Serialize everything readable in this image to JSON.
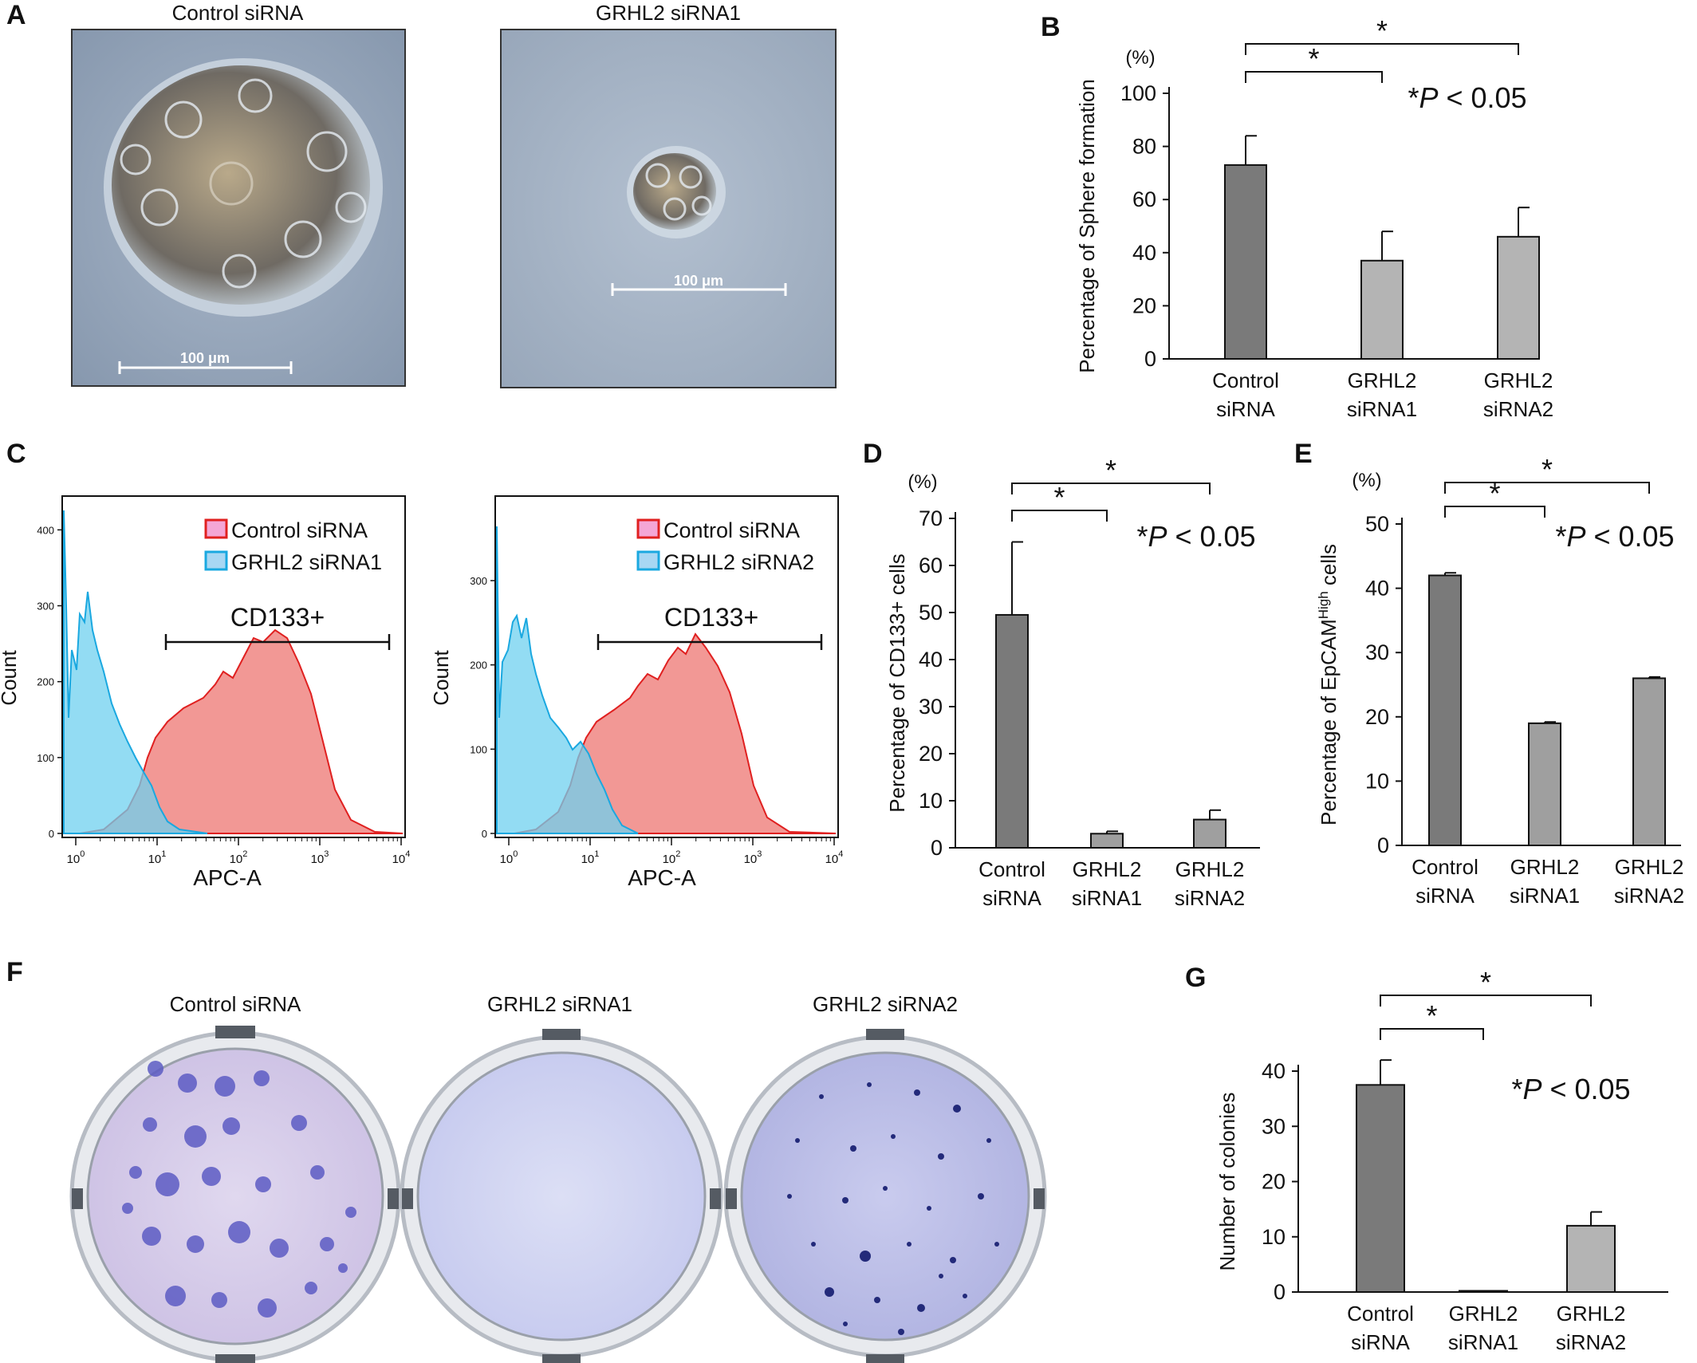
{
  "panel_letters": [
    "A",
    "B",
    "C",
    "D",
    "E",
    "F",
    "G"
  ],
  "micrographs": [
    {
      "label": "Control siRNA",
      "scale_bar": "100 μm"
    },
    {
      "label": "GRHL2 siRNA1",
      "scale_bar": "100 μm"
    }
  ],
  "flow": {
    "ylabel": "Count",
    "xlabel": "APC-A",
    "gate_label": "CD133+",
    "x_ticks": [
      "10",
      "10",
      "10",
      "10",
      "10"
    ],
    "x_tick_exponents": [
      "0",
      "1",
      "2",
      "3",
      "4"
    ],
    "left": {
      "legend": [
        "Control siRNA",
        "GRHL2 siRNA1"
      ],
      "y_ticks": [
        "0",
        "100",
        "200",
        "300",
        "400"
      ]
    },
    "right": {
      "legend": [
        "Control siRNA",
        "GRHL2 siRNA2"
      ],
      "y_ticks": [
        "0",
        "100",
        "200",
        "300"
      ]
    },
    "colors": {
      "control": "#f08080",
      "knockdown": "#6fd0ef",
      "control_line": "#e02020",
      "knockdown_line": "#1aa8e0"
    }
  },
  "plates": {
    "labels": [
      "Control siRNA",
      "GRHL2 siRNA1",
      "GRHL2 siRNA2"
    ]
  },
  "pvalue_text": {
    "prefix": "*",
    "p": "P",
    "suffix": " < 0.05"
  },
  "chart_data": [
    {
      "panel": "B",
      "type": "bar",
      "unit_label": "(%)",
      "ylabel": "Percentage of Sphere formation",
      "categories": [
        [
          "Control",
          "siRNA"
        ],
        [
          "GRHL2",
          "siRNA1"
        ],
        [
          "GRHL2",
          "siRNA2"
        ]
      ],
      "values": [
        73,
        37,
        46
      ],
      "errors": [
        11,
        11,
        11
      ],
      "ylim": [
        0,
        100
      ],
      "y_ticks": [
        "0",
        "20",
        "40",
        "60",
        "80",
        "100"
      ],
      "bar_colors": [
        "#7a7a7a",
        "#b4b4b4",
        "#b4b4b4"
      ],
      "significance": [
        {
          "from": 0,
          "to": 1,
          "mark": "*"
        },
        {
          "from": 0,
          "to": 2,
          "mark": "*"
        }
      ]
    },
    {
      "panel": "D",
      "type": "bar",
      "unit_label": "(%)",
      "ylabel": "Percentage of CD133+ cells",
      "categories": [
        [
          "Control",
          "siRNA"
        ],
        [
          "GRHL2",
          "siRNA1"
        ],
        [
          "GRHL2",
          "siRNA2"
        ]
      ],
      "values": [
        49.5,
        3,
        6
      ],
      "errors": [
        15.5,
        0.5,
        2
      ],
      "ylim": [
        0,
        70
      ],
      "y_ticks": [
        "0",
        "10",
        "20",
        "30",
        "40",
        "50",
        "60",
        "70"
      ],
      "bar_colors": [
        "#7a7a7a",
        "#9f9f9f",
        "#9f9f9f"
      ],
      "significance": [
        {
          "from": 0,
          "to": 1,
          "mark": "*"
        },
        {
          "from": 0,
          "to": 2,
          "mark": "*"
        }
      ]
    },
    {
      "panel": "E",
      "type": "bar",
      "unit_label": "(%)",
      "ylabel": "Percentage of EpCAM",
      "ylabel_superscript": "High",
      "ylabel_suffix": " cells",
      "categories": [
        [
          "Control",
          "siRNA"
        ],
        [
          "GRHL2",
          "siRNA1"
        ],
        [
          "GRHL2",
          "siRNA2"
        ]
      ],
      "values": [
        42,
        19,
        26
      ],
      "errors": [
        0.4,
        0.2,
        0.2
      ],
      "ylim": [
        0,
        50
      ],
      "y_ticks": [
        "0",
        "10",
        "20",
        "30",
        "40",
        "50"
      ],
      "bar_colors": [
        "#7a7a7a",
        "#9f9f9f",
        "#9f9f9f"
      ],
      "significance": [
        {
          "from": 0,
          "to": 1,
          "mark": "*"
        },
        {
          "from": 0,
          "to": 2,
          "mark": "*"
        }
      ]
    },
    {
      "panel": "G",
      "type": "bar",
      "ylabel": "Number of colonies",
      "categories": [
        [
          "Control",
          "siRNA"
        ],
        [
          "GRHL2",
          "siRNA1"
        ],
        [
          "GRHL2",
          "siRNA2"
        ]
      ],
      "values": [
        37.5,
        0.2,
        12
      ],
      "errors": [
        4.5,
        0,
        2.5
      ],
      "ylim": [
        0,
        40
      ],
      "y_ticks": [
        "0",
        "10",
        "20",
        "30",
        "40"
      ],
      "bar_colors": [
        "#7a7a7a",
        "#9f9f9f",
        "#b4b4b4"
      ],
      "significance": [
        {
          "from": 0,
          "to": 1,
          "mark": "*"
        },
        {
          "from": 0,
          "to": 2,
          "mark": "*"
        }
      ]
    }
  ]
}
